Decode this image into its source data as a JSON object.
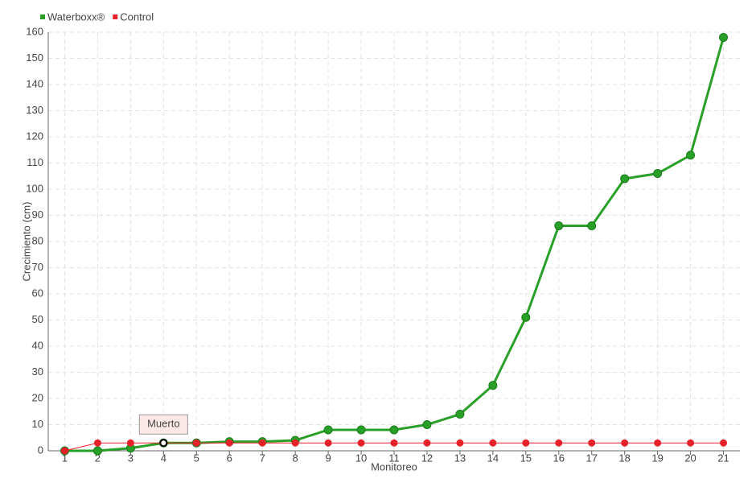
{
  "chart_data": {
    "type": "line",
    "x_label": "Monitoreo",
    "y_label": "Crecimiento (cm)",
    "categories": [
      "1",
      "2",
      "3",
      "4",
      "5",
      "6",
      "7",
      "8",
      "9",
      "10",
      "11",
      "12",
      "13",
      "14",
      "15",
      "16",
      "17",
      "18",
      "19",
      "20",
      "21"
    ],
    "series": [
      {
        "name": "Waterboxx®",
        "color": "#28a028",
        "values": [
          0,
          0,
          1,
          3,
          3,
          3.5,
          3.5,
          4,
          8,
          8,
          8,
          10,
          14,
          25,
          51,
          86,
          86,
          104,
          106,
          113,
          158
        ]
      },
      {
        "name": "Control",
        "color": "#e8202a",
        "values": [
          0,
          3,
          3,
          3,
          3,
          3,
          3,
          3,
          3,
          3,
          3,
          3,
          3,
          3,
          3,
          3,
          3,
          3,
          3,
          3,
          3
        ]
      }
    ],
    "annotations": [
      {
        "text": "Muerto",
        "x": "4",
        "series": "Control"
      }
    ],
    "ylim": [
      0,
      160
    ],
    "yticks": [
      0,
      10,
      20,
      30,
      40,
      50,
      60,
      70,
      80,
      90,
      100,
      110,
      120,
      130,
      140,
      150,
      160
    ],
    "grid": true,
    "legend": "top-left"
  }
}
